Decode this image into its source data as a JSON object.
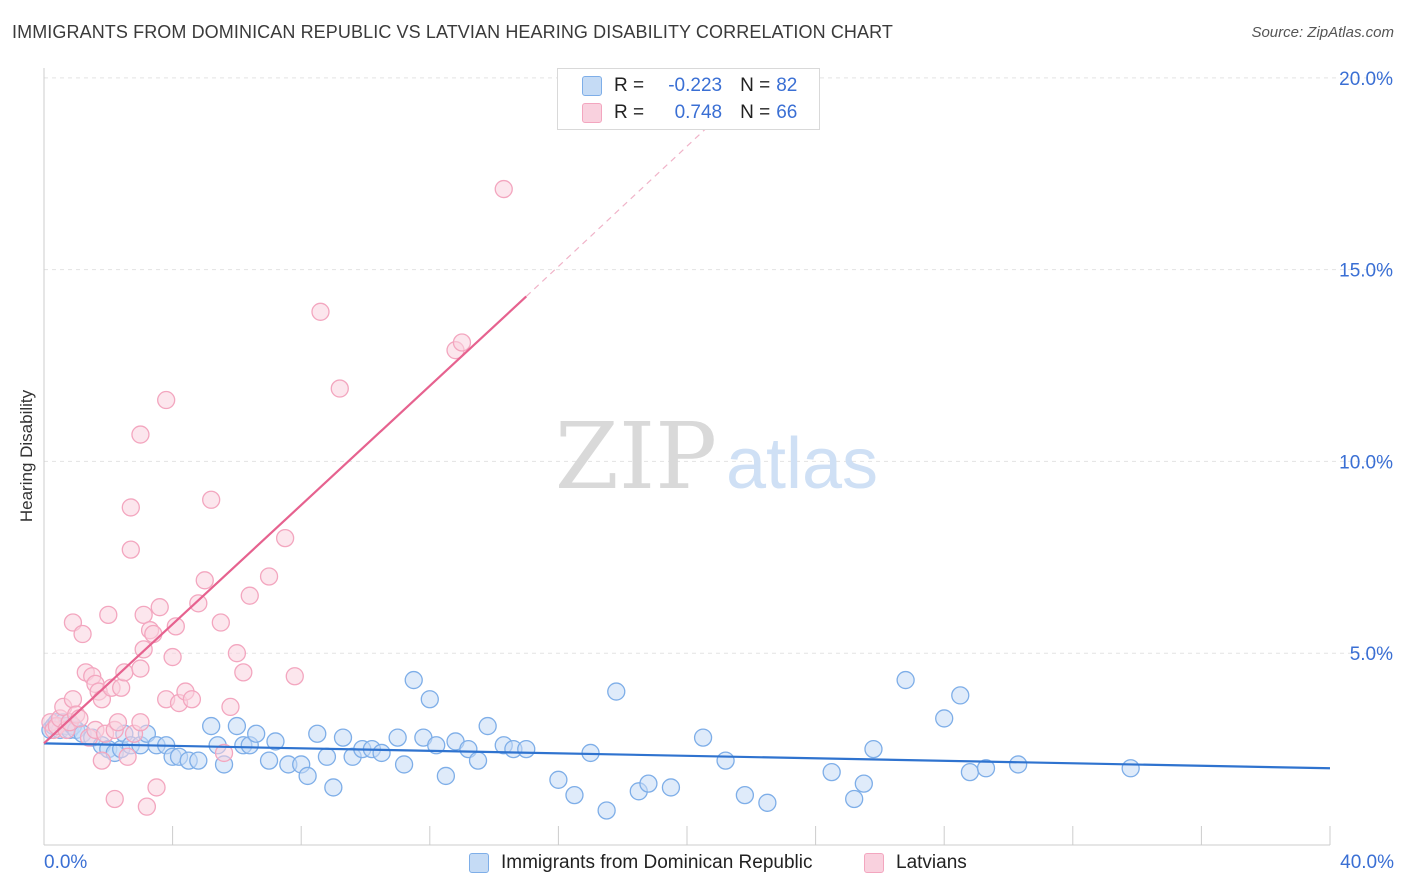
{
  "chart_data": {
    "type": "scatter",
    "title": "IMMIGRANTS FROM DOMINICAN REPUBLIC VS LATVIAN HEARING DISABILITY CORRELATION CHART",
    "source": "Source: ZipAtlas.com",
    "xlabel": "",
    "ylabel": "Hearing Disability",
    "xlim": [
      0,
      40
    ],
    "ylim": [
      0,
      20.5
    ],
    "x_tick_labels": [
      "0.0%",
      "40.0%"
    ],
    "y_ticks": [
      5,
      10,
      15,
      20
    ],
    "y_tick_labels": [
      "5.0%",
      "10.0%",
      "15.0%",
      "20.0%"
    ],
    "grid": true,
    "watermark": {
      "zip": "ZIP",
      "atlas": "atlas"
    },
    "legend": {
      "rows": [
        {
          "r_label": "R =",
          "r_value": "-0.223",
          "n_label": "N =",
          "n_value": "82"
        },
        {
          "r_label": "R =",
          "r_value": "0.748",
          "n_label": "N =",
          "n_value": "66"
        }
      ]
    },
    "series": [
      {
        "name": "Immigrants from Dominican Republic",
        "color": "#7eaee8",
        "fill": "#c5dbf5",
        "line_color": "#2f73cf",
        "trend": {
          "x": [
            0,
            40
          ],
          "y": [
            2.65,
            2.0
          ]
        },
        "points": [
          [
            0.2,
            3.0
          ],
          [
            0.3,
            3.1
          ],
          [
            0.4,
            3.2
          ],
          [
            0.5,
            3.0
          ],
          [
            0.6,
            3.2
          ],
          [
            0.7,
            3.1
          ],
          [
            0.8,
            3.0
          ],
          [
            0.9,
            3.1
          ],
          [
            1.0,
            3.0
          ],
          [
            1.2,
            2.9
          ],
          [
            1.5,
            2.8
          ],
          [
            1.8,
            2.6
          ],
          [
            2.0,
            2.5
          ],
          [
            2.2,
            2.4
          ],
          [
            2.4,
            2.5
          ],
          [
            2.5,
            2.9
          ],
          [
            2.7,
            2.6
          ],
          [
            3.0,
            2.6
          ],
          [
            3.2,
            2.9
          ],
          [
            3.5,
            2.6
          ],
          [
            3.8,
            2.6
          ],
          [
            4.0,
            2.3
          ],
          [
            4.2,
            2.3
          ],
          [
            4.5,
            2.2
          ],
          [
            4.8,
            2.2
          ],
          [
            5.2,
            3.1
          ],
          [
            5.4,
            2.6
          ],
          [
            5.6,
            2.1
          ],
          [
            6.0,
            3.1
          ],
          [
            6.2,
            2.6
          ],
          [
            6.4,
            2.6
          ],
          [
            6.6,
            2.9
          ],
          [
            7.0,
            2.2
          ],
          [
            7.2,
            2.7
          ],
          [
            7.6,
            2.1
          ],
          [
            8.0,
            2.1
          ],
          [
            8.2,
            1.8
          ],
          [
            8.5,
            2.9
          ],
          [
            8.8,
            2.3
          ],
          [
            9.0,
            1.5
          ],
          [
            9.3,
            2.8
          ],
          [
            9.6,
            2.3
          ],
          [
            9.9,
            2.5
          ],
          [
            10.2,
            2.5
          ],
          [
            10.5,
            2.4
          ],
          [
            11.0,
            2.8
          ],
          [
            11.2,
            2.1
          ],
          [
            11.5,
            4.3
          ],
          [
            11.8,
            2.8
          ],
          [
            12.0,
            3.8
          ],
          [
            12.2,
            2.6
          ],
          [
            12.5,
            1.8
          ],
          [
            12.8,
            2.7
          ],
          [
            13.2,
            2.5
          ],
          [
            13.5,
            2.2
          ],
          [
            13.8,
            3.1
          ],
          [
            14.3,
            2.6
          ],
          [
            14.6,
            2.5
          ],
          [
            15.0,
            2.5
          ],
          [
            16.0,
            1.7
          ],
          [
            16.5,
            1.3
          ],
          [
            17.0,
            2.4
          ],
          [
            17.5,
            0.9
          ],
          [
            17.8,
            4.0
          ],
          [
            18.5,
            1.4
          ],
          [
            18.8,
            1.6
          ],
          [
            19.5,
            1.5
          ],
          [
            20.5,
            2.8
          ],
          [
            21.2,
            2.2
          ],
          [
            21.8,
            1.3
          ],
          [
            22.5,
            1.1
          ],
          [
            24.5,
            1.9
          ],
          [
            25.2,
            1.2
          ],
          [
            25.5,
            1.6
          ],
          [
            25.8,
            2.5
          ],
          [
            26.8,
            4.3
          ],
          [
            28.0,
            3.3
          ],
          [
            28.5,
            3.9
          ],
          [
            28.8,
            1.9
          ],
          [
            29.3,
            2.0
          ],
          [
            30.3,
            2.1
          ],
          [
            33.8,
            2.0
          ]
        ]
      },
      {
        "name": "Latvians",
        "color": "#f3a6bf",
        "fill": "#f9d1de",
        "line_color": "#e6628f",
        "trend": {
          "x": [
            0,
            15
          ],
          "y": [
            2.65,
            14.3
          ]
        },
        "trend_dashed": {
          "x": [
            15,
            21
          ],
          "y": [
            14.3,
            19.0
          ]
        },
        "points": [
          [
            0.2,
            3.2
          ],
          [
            0.3,
            3.0
          ],
          [
            0.4,
            3.1
          ],
          [
            0.5,
            3.3
          ],
          [
            0.6,
            3.6
          ],
          [
            0.7,
            3.0
          ],
          [
            0.8,
            3.2
          ],
          [
            0.9,
            3.8
          ],
          [
            1.0,
            3.4
          ],
          [
            1.1,
            3.3
          ],
          [
            0.9,
            5.8
          ],
          [
            1.2,
            5.5
          ],
          [
            1.3,
            4.5
          ],
          [
            1.4,
            2.8
          ],
          [
            1.5,
            4.4
          ],
          [
            1.6,
            4.2
          ],
          [
            1.6,
            3.0
          ],
          [
            1.7,
            4.0
          ],
          [
            1.8,
            3.8
          ],
          [
            1.8,
            2.2
          ],
          [
            1.9,
            2.9
          ],
          [
            2.0,
            6.0
          ],
          [
            2.1,
            4.1
          ],
          [
            2.2,
            3.0
          ],
          [
            2.2,
            1.2
          ],
          [
            2.3,
            3.2
          ],
          [
            2.4,
            4.1
          ],
          [
            2.5,
            4.5
          ],
          [
            2.6,
            2.3
          ],
          [
            2.7,
            8.8
          ],
          [
            2.7,
            7.7
          ],
          [
            2.8,
            2.9
          ],
          [
            3.0,
            4.6
          ],
          [
            3.0,
            10.7
          ],
          [
            3.0,
            3.2
          ],
          [
            3.1,
            5.1
          ],
          [
            3.1,
            6.0
          ],
          [
            3.2,
            1.0
          ],
          [
            3.3,
            5.6
          ],
          [
            3.4,
            5.5
          ],
          [
            3.5,
            1.5
          ],
          [
            3.6,
            6.2
          ],
          [
            3.8,
            11.6
          ],
          [
            3.8,
            3.8
          ],
          [
            4.0,
            4.9
          ],
          [
            4.1,
            5.7
          ],
          [
            4.2,
            3.7
          ],
          [
            4.4,
            4.0
          ],
          [
            4.6,
            3.8
          ],
          [
            4.8,
            6.3
          ],
          [
            5.0,
            6.9
          ],
          [
            5.2,
            9.0
          ],
          [
            5.5,
            5.8
          ],
          [
            5.6,
            2.4
          ],
          [
            5.8,
            3.6
          ],
          [
            6.0,
            5.0
          ],
          [
            6.4,
            6.5
          ],
          [
            7.5,
            8.0
          ],
          [
            7.8,
            4.4
          ],
          [
            8.6,
            13.9
          ],
          [
            9.2,
            11.9
          ],
          [
            12.8,
            12.9
          ],
          [
            13.0,
            13.1
          ],
          [
            14.3,
            17.1
          ],
          [
            7.0,
            7.0
          ],
          [
            6.2,
            4.5
          ]
        ]
      }
    ]
  }
}
